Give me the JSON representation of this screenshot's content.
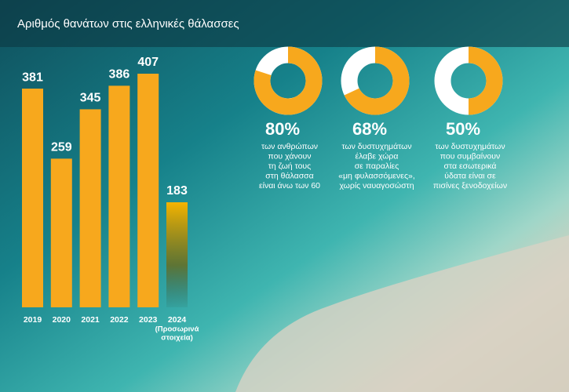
{
  "chart_data": [
    {
      "type": "bar",
      "title": "Αριθμός θανάτων στις ελληνικές θάλασσες",
      "categories": [
        "2019",
        "2020",
        "2021",
        "2022",
        "2023",
        "2024"
      ],
      "values": [
        381,
        259,
        345,
        386,
        407,
        183
      ],
      "color": "#f7a81d",
      "annotations": [
        "(Προσωρινά",
        "στοιχεία)"
      ]
    },
    {
      "type": "donut",
      "values": [
        80,
        68,
        50
      ],
      "value_labels": [
        "80%",
        "68%",
        "50%"
      ],
      "color": "#f7a81d",
      "descriptions": [
        [
          "των ανθρώπων",
          "που χάνουν",
          "τη ζωή τους",
          "στη θάλασσα",
          "είναι άνω των 60"
        ],
        [
          "των δυστυχημάτων",
          "έλαβε χώρα",
          "σε παραλίες",
          "«μη φυλασσόμενες»,",
          "χωρίς ναυαγοσώστη"
        ],
        [
          "των δυστυχημάτων",
          "που συμβαίνουν",
          "στα εσωτερικά",
          "ύδατα είναι σε",
          "πισίνες ξενοδοχείων"
        ]
      ]
    }
  ]
}
